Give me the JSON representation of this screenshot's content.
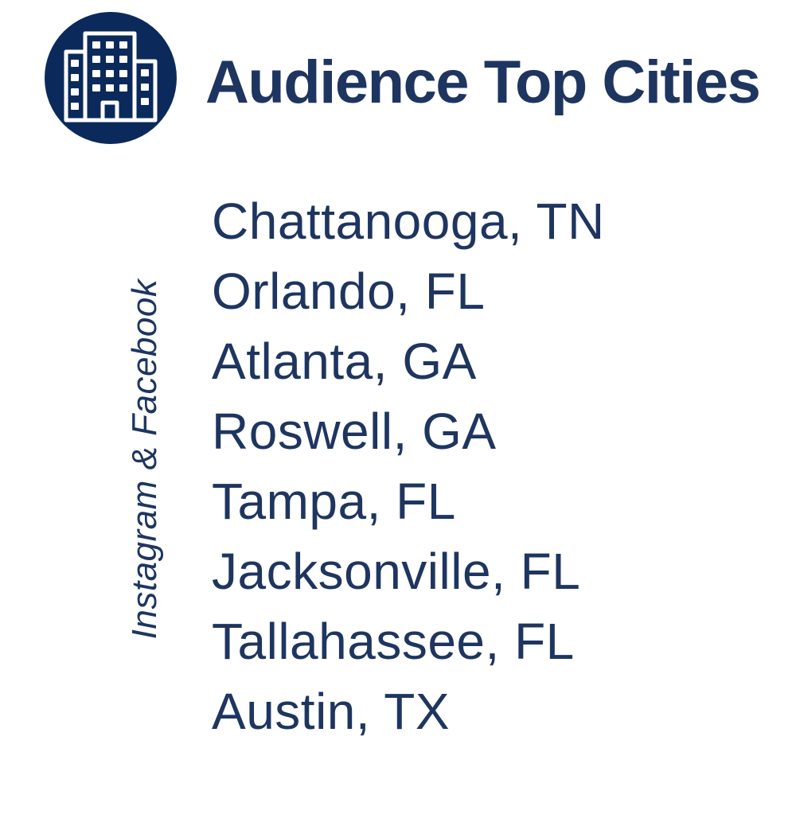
{
  "header": {
    "title": "Audience Top Cities",
    "icon": "office-building-icon"
  },
  "side_label": "Instagram & Facebook",
  "cities": [
    "Chattanooga, TN",
    "Orlando, FL",
    "Atlanta, GA",
    "Roswell, GA",
    "Tampa, FL",
    "Jacksonville, FL",
    "Tallahassee, FL",
    "Austin, TX"
  ],
  "colors": {
    "primary": "#1e3560",
    "icon_background": "#0b2a5b",
    "background": "#ffffff"
  }
}
